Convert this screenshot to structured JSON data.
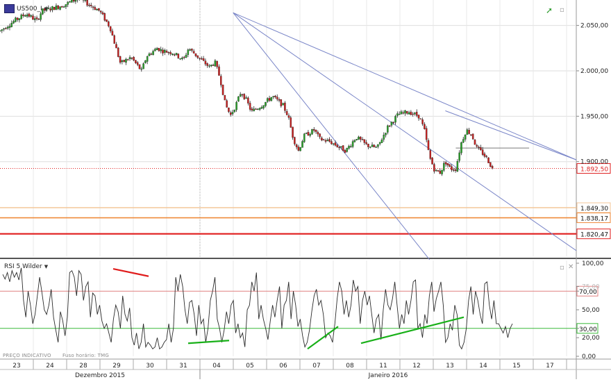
{
  "chart_data": [
    {
      "type": "candlestick",
      "symbol": "US500",
      "symbol_suffix": "_I",
      "price_axis": [
        "2.050,00",
        "2.000,00",
        "1.950,00",
        "1.900,00"
      ],
      "ylim": [
        1795,
        2078
      ],
      "last_price_label": "1.892,50",
      "last_price": 1892.5,
      "levels": [
        {
          "label": "1.849,30",
          "value": 1849.3,
          "color": "#f4c79a"
        },
        {
          "label": "1.838,17",
          "value": 1838.17,
          "color": "#ef8a3a"
        },
        {
          "label": "1.820,47",
          "value": 1820.47,
          "color": "#e01c1c"
        }
      ],
      "x_days": [
        "23",
        "24",
        "28",
        "29",
        "30",
        "31",
        "04",
        "05",
        "06",
        "07",
        "08",
        "11",
        "12",
        "13",
        "14",
        "15",
        "17"
      ],
      "x_months": [
        "Dezembro 2015",
        "Janeiro 2016"
      ],
      "path_points": [
        [
          0,
          2044
        ],
        [
          3,
          2056
        ],
        [
          5,
          2063
        ],
        [
          7,
          2055
        ],
        [
          8,
          2066
        ],
        [
          12,
          2072
        ],
        [
          15,
          2080
        ],
        [
          17,
          2073
        ],
        [
          19,
          2066
        ],
        [
          21,
          2048
        ],
        [
          22,
          2028
        ],
        [
          23,
          2008
        ],
        [
          25,
          2015
        ],
        [
          27,
          2000
        ],
        [
          28,
          2016
        ],
        [
          30,
          2025
        ],
        [
          31,
          2022
        ],
        [
          33,
          2020
        ],
        [
          35,
          2012
        ],
        [
          36,
          2025
        ],
        [
          38,
          2014
        ],
        [
          40,
          2004
        ],
        [
          41,
          2010
        ],
        [
          42,
          1992
        ],
        [
          43,
          1963
        ],
        [
          44,
          1951
        ],
        [
          45,
          1962
        ],
        [
          46,
          1977
        ],
        [
          47,
          1968
        ],
        [
          48,
          1955
        ],
        [
          50,
          1962
        ],
        [
          52,
          1972
        ],
        [
          54,
          1962
        ],
        [
          55,
          1950
        ],
        [
          56,
          1925
        ],
        [
          57,
          1912
        ],
        [
          58,
          1928
        ],
        [
          60,
          1935
        ],
        [
          61,
          1925
        ],
        [
          63,
          1922
        ],
        [
          65,
          1915
        ],
        [
          66,
          1912
        ],
        [
          68,
          1927
        ],
        [
          70,
          1918
        ],
        [
          72,
          1915
        ],
        [
          74,
          1938
        ],
        [
          76,
          1952
        ],
        [
          78,
          1955
        ],
        [
          80,
          1950
        ],
        [
          81,
          1935
        ],
        [
          82,
          1905
        ],
        [
          83,
          1890
        ],
        [
          84,
          1888
        ],
        [
          85,
          1900
        ],
        [
          86,
          1892
        ],
        [
          87,
          1892
        ],
        [
          88,
          1920
        ],
        [
          89,
          1935
        ],
        [
          90,
          1930
        ],
        [
          91,
          1915
        ],
        [
          92,
          1910
        ],
        [
          93,
          1903
        ],
        [
          94,
          1892
        ]
      ],
      "channel_lines": [
        {
          "from": [
            44.5,
            2064
          ],
          "to": [
            110,
            1902
          ]
        },
        {
          "from": [
            44.5,
            2064
          ],
          "to": [
            110,
            1802
          ]
        },
        {
          "from": [
            44.5,
            2064
          ],
          "to": [
            82,
            1792
          ]
        },
        {
          "from": [
            85,
            1956
          ],
          "to": [
            110,
            1902
          ]
        }
      ],
      "resistance": {
        "from": [
          87,
          1915
        ],
        "to": [
          101,
          1915
        ]
      }
    },
    {
      "type": "line",
      "indicator": "RSI 5 Wilder",
      "ylim": [
        0,
        100
      ],
      "y_axis": [
        "100,00",
        "75,00",
        "70,00",
        "50,00",
        "30,00",
        "20,00",
        "0,00"
      ],
      "overbought": 70,
      "oversold": 30,
      "overbought_label": "70,00",
      "oversold_label": "30,00",
      "values": [
        88,
        83,
        90,
        80,
        92,
        85,
        90,
        82,
        95,
        60,
        42,
        70,
        55,
        35,
        45,
        65,
        85,
        68,
        50,
        45,
        55,
        72,
        42,
        28,
        15,
        48,
        38,
        22,
        42,
        90,
        92,
        85,
        65,
        92,
        88,
        60,
        75,
        80,
        42,
        68,
        65,
        45,
        55,
        38,
        30,
        35,
        25,
        15,
        40,
        55,
        48,
        30,
        65,
        45,
        38,
        52,
        20,
        12,
        25,
        8,
        15,
        35,
        10,
        15,
        12,
        8,
        10,
        20,
        8,
        10,
        15,
        18,
        35,
        15,
        30,
        85,
        70,
        88,
        75,
        50,
        35,
        58,
        60,
        45,
        22,
        55,
        35,
        40,
        15,
        30,
        60,
        70,
        85,
        40,
        30,
        15,
        28,
        48,
        35,
        55,
        60,
        25,
        35,
        20,
        25,
        10,
        50,
        55,
        80,
        70,
        90,
        40,
        55,
        40,
        30,
        18,
        38,
        55,
        42,
        60,
        75,
        30,
        55,
        60,
        80,
        40,
        70,
        55,
        32,
        40,
        22,
        10,
        15,
        28,
        48,
        65,
        72,
        55,
        60,
        45,
        20,
        25,
        22,
        15,
        35,
        62,
        80,
        70,
        45,
        60,
        42,
        55,
        82,
        70,
        75,
        35,
        60,
        70,
        55,
        65,
        45,
        25,
        40,
        45,
        18,
        50,
        72,
        55,
        50,
        62,
        80,
        55,
        30,
        45,
        35,
        60,
        45,
        60,
        80,
        82,
        30,
        35,
        20,
        45,
        35,
        65,
        80,
        48,
        62,
        70,
        80,
        55,
        15,
        20,
        35,
        28,
        55,
        45,
        12,
        8,
        15,
        30,
        60,
        75,
        45,
        70,
        60,
        45,
        35,
        78,
        80,
        55,
        40,
        60,
        35,
        35,
        30,
        25,
        32,
        20,
        30,
        35
      ]
    }
  ],
  "notes": {
    "preco_indicativo": "PREÇO INDICATIVO",
    "fuso_horario": "Fuso horário: TMG"
  },
  "icons": {
    "trend_icon": "trend-up-icon",
    "panel_icon": "panel-maximize-icon",
    "close_icon": "close-icon"
  },
  "colors": {
    "candle_up": "#2aa02a",
    "candle_down": "#c82020",
    "channel": "#7a86c8",
    "last_price": "#e02020",
    "trendline_red": "#e01c1c",
    "trendline_green": "#18b018",
    "rsi_overbought": "#e08080",
    "rsi_oversold": "#38b838"
  }
}
